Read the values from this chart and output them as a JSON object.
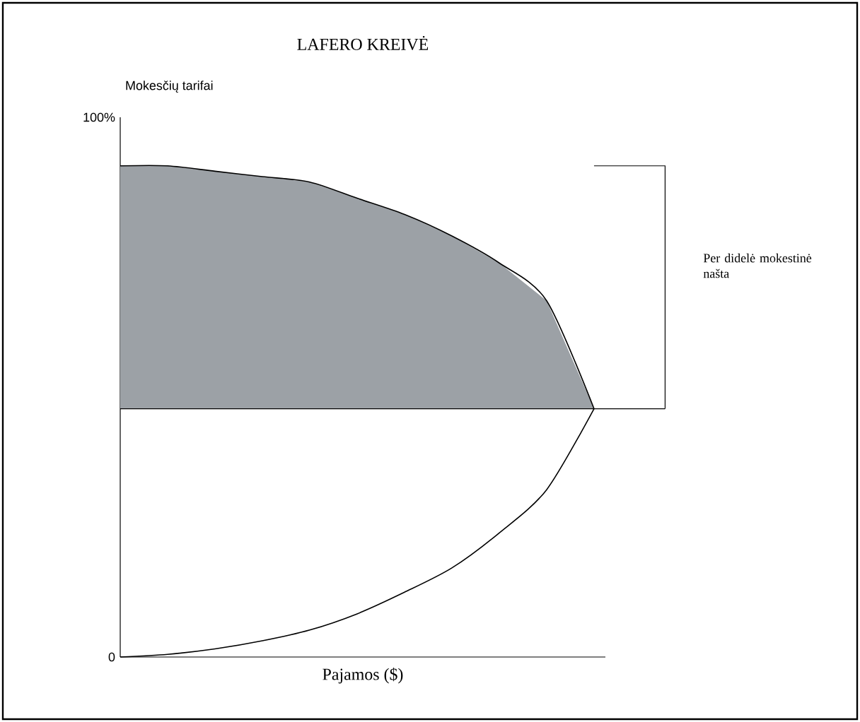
{
  "chart_data": {
    "type": "line",
    "title": "LAFERO KREIVĖ",
    "xlabel": "Pajamos ($)",
    "ylabel": "Mokesčių tarifai",
    "categories": [
      null,
      null,
      null,
      null,
      null,
      null,
      null,
      null,
      null,
      null,
      null
    ],
    "series": [
      {
        "type": "area",
        "color": "#9ca1a6",
        "values": [
          91,
          91,
          90,
          89,
          88,
          85,
          82,
          78,
          73,
          66,
          46
        ]
      },
      {
        "color": "#000000",
        "values": [
          0,
          0.5,
          1.5,
          3,
          5,
          8,
          12,
          16.5,
          23,
          31,
          46
        ]
      }
    ],
    "ylim": [
      0,
      100
    ],
    "yticks": [
      0,
      {
        "value": 100,
        "label": "100%"
      }
    ],
    "ref_lines": [
      {
        "axis": "y",
        "value": 46
      }
    ],
    "annotations": [
      "Per didelė mokestinė našta"
    ]
  }
}
